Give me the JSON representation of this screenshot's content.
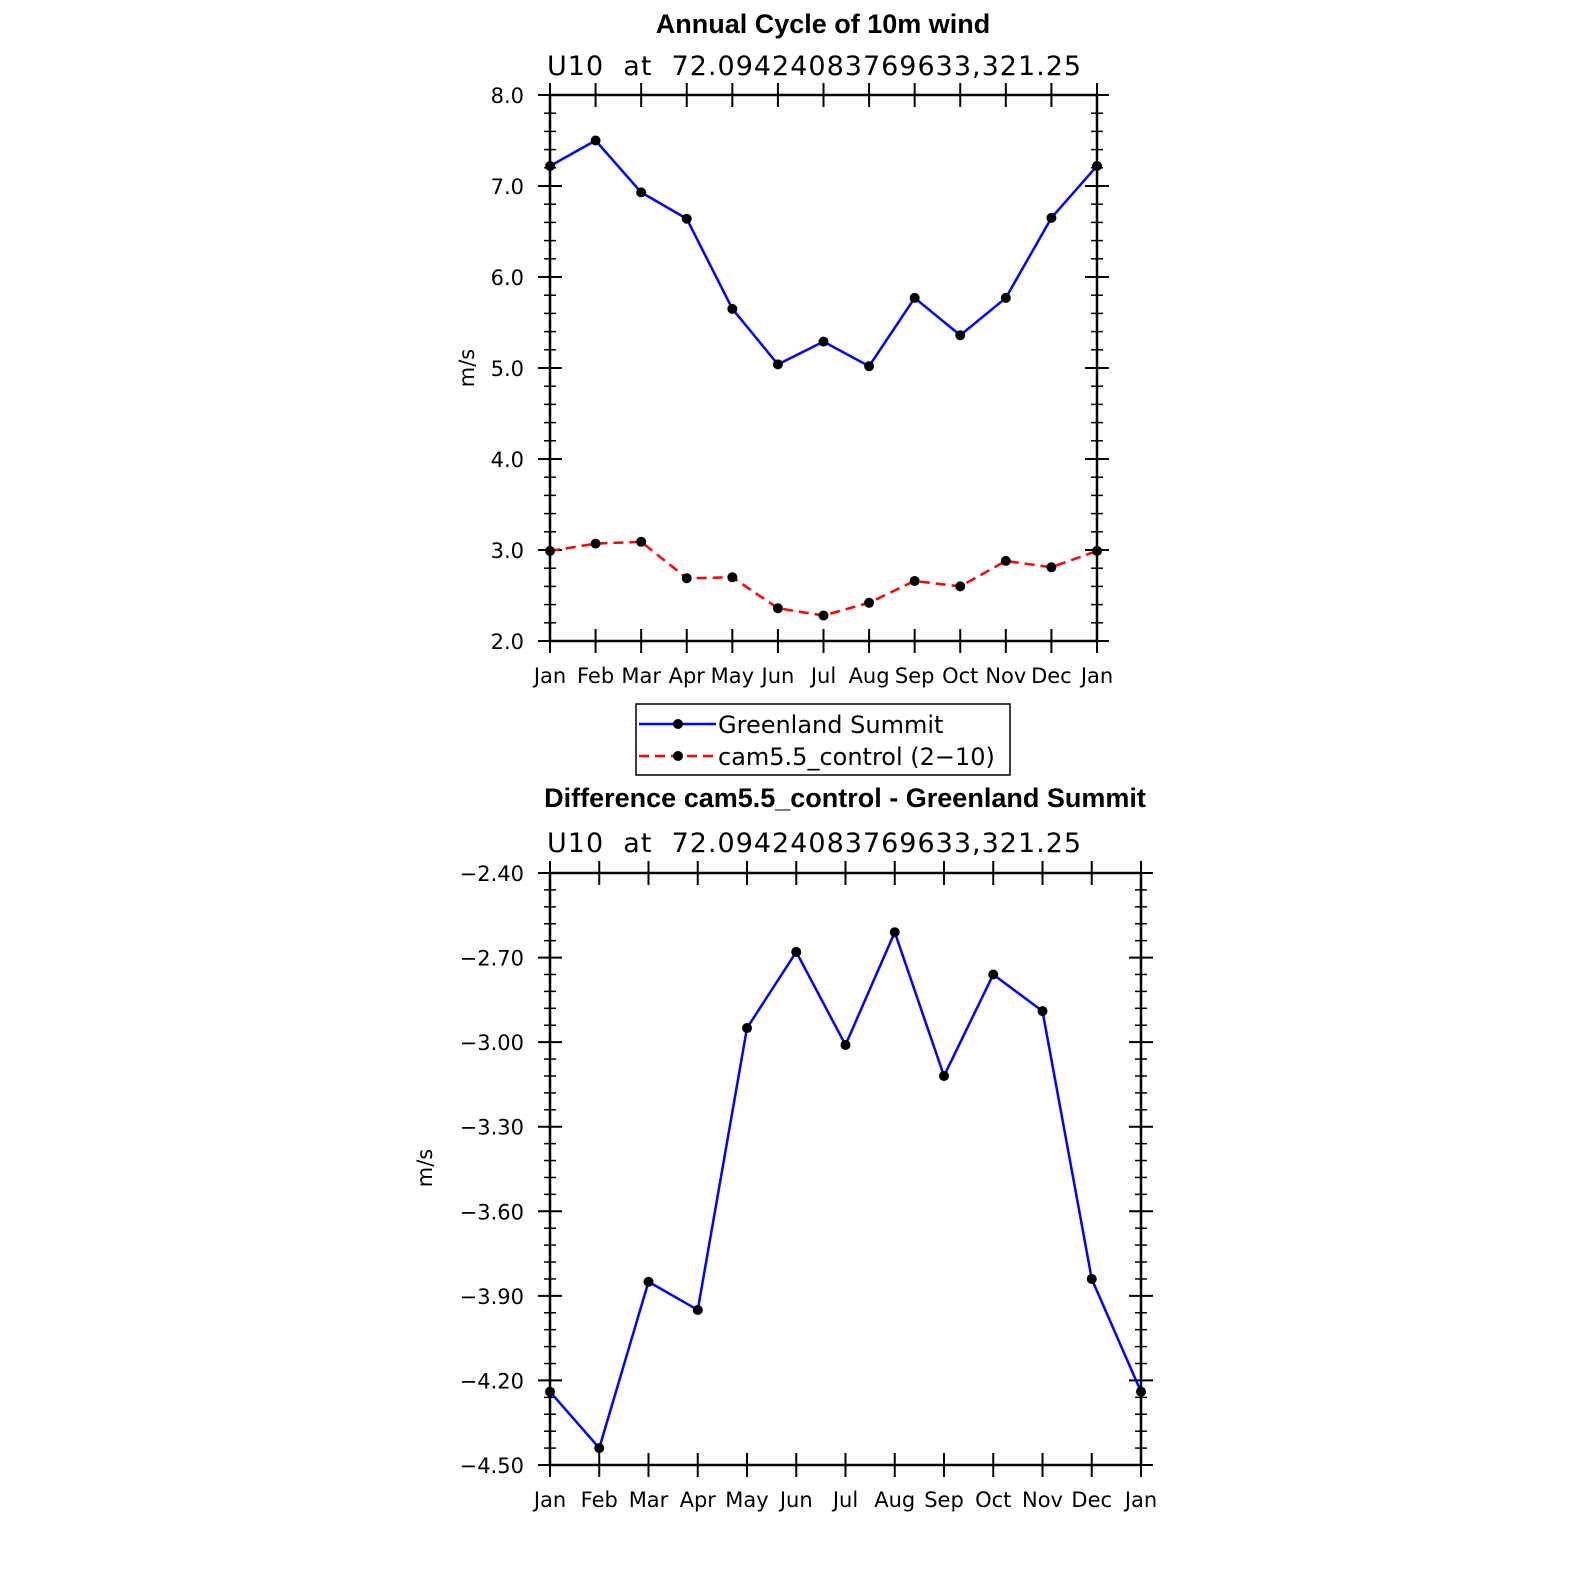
{
  "chart_data": [
    {
      "type": "line",
      "title": "Annual Cycle of 10m wind",
      "subtitle": "U10  at  72.09424083769633,321.25",
      "ylabel": "m/s",
      "ylim": [
        2.0,
        8.0
      ],
      "yticks": [
        "2.0",
        "3.0",
        "4.0",
        "5.0",
        "6.0",
        "7.0",
        "8.0"
      ],
      "categories": [
        "Jan",
        "Feb",
        "Mar",
        "Apr",
        "May",
        "Jun",
        "Jul",
        "Aug",
        "Sep",
        "Oct",
        "Nov",
        "Dec",
        "Jan"
      ],
      "series": [
        {
          "name": "Greenland Summit",
          "color": "#0000ff",
          "dash": "solid",
          "values": [
            7.22,
            7.5,
            6.93,
            6.64,
            5.65,
            5.04,
            5.29,
            5.02,
            5.77,
            5.36,
            5.77,
            6.65,
            7.22
          ]
        },
        {
          "name": "cam5.5_control (2−10)",
          "color": "#ff0000",
          "dash": "dashed",
          "values": [
            2.99,
            3.07,
            3.09,
            2.69,
            2.7,
            2.36,
            2.28,
            2.42,
            2.66,
            2.6,
            2.88,
            2.81,
            2.99
          ]
        }
      ],
      "legend": "below"
    },
    {
      "type": "line",
      "title": "Difference cam5.5_control - Greenland Summit",
      "subtitle": "U10  at  72.09424083769633,321.25",
      "ylabel": "m/s",
      "ylim": [
        -4.5,
        -2.4
      ],
      "yticks": [
        "−4.50",
        "−4.20",
        "−3.90",
        "−3.60",
        "−3.30",
        "−3.00",
        "−2.70",
        "−2.40"
      ],
      "categories": [
        "Jan",
        "Feb",
        "Mar",
        "Apr",
        "May",
        "Jun",
        "Jul",
        "Aug",
        "Sep",
        "Oct",
        "Nov",
        "Dec",
        "Jan"
      ],
      "series": [
        {
          "color": "#0000ff",
          "dash": "solid",
          "values": [
            -4.24,
            -4.44,
            -3.85,
            -3.95,
            -2.95,
            -2.68,
            -3.01,
            -2.61,
            -3.12,
            -2.76,
            -2.89,
            -3.84,
            -4.24
          ]
        }
      ]
    }
  ]
}
